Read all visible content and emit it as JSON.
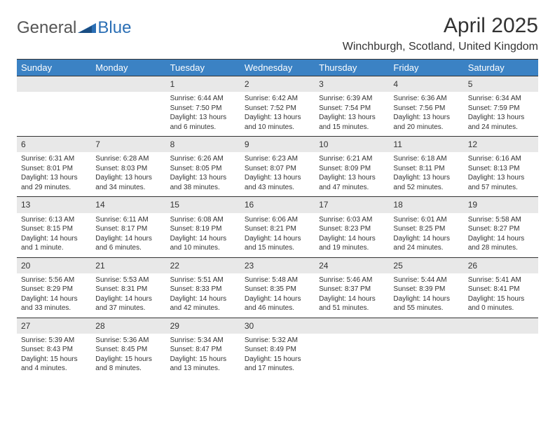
{
  "logo": {
    "text1": "General",
    "text2": "Blue"
  },
  "title": "April 2025",
  "subtitle": "Winchburgh, Scotland, United Kingdom",
  "colors": {
    "header_bg": "#3b82c4",
    "header_text": "#ffffff",
    "daynum_bg": "#e8e8e8",
    "border": "#333333",
    "logo_blue": "#2b6fb5"
  },
  "day_headers": [
    "Sunday",
    "Monday",
    "Tuesday",
    "Wednesday",
    "Thursday",
    "Friday",
    "Saturday"
  ],
  "weeks": [
    [
      {
        "blank": true
      },
      {
        "blank": true
      },
      {
        "num": "1",
        "sunrise": "Sunrise: 6:44 AM",
        "sunset": "Sunset: 7:50 PM",
        "daylight": "Daylight: 13 hours and 6 minutes."
      },
      {
        "num": "2",
        "sunrise": "Sunrise: 6:42 AM",
        "sunset": "Sunset: 7:52 PM",
        "daylight": "Daylight: 13 hours and 10 minutes."
      },
      {
        "num": "3",
        "sunrise": "Sunrise: 6:39 AM",
        "sunset": "Sunset: 7:54 PM",
        "daylight": "Daylight: 13 hours and 15 minutes."
      },
      {
        "num": "4",
        "sunrise": "Sunrise: 6:36 AM",
        "sunset": "Sunset: 7:56 PM",
        "daylight": "Daylight: 13 hours and 20 minutes."
      },
      {
        "num": "5",
        "sunrise": "Sunrise: 6:34 AM",
        "sunset": "Sunset: 7:59 PM",
        "daylight": "Daylight: 13 hours and 24 minutes."
      }
    ],
    [
      {
        "num": "6",
        "sunrise": "Sunrise: 6:31 AM",
        "sunset": "Sunset: 8:01 PM",
        "daylight": "Daylight: 13 hours and 29 minutes."
      },
      {
        "num": "7",
        "sunrise": "Sunrise: 6:28 AM",
        "sunset": "Sunset: 8:03 PM",
        "daylight": "Daylight: 13 hours and 34 minutes."
      },
      {
        "num": "8",
        "sunrise": "Sunrise: 6:26 AM",
        "sunset": "Sunset: 8:05 PM",
        "daylight": "Daylight: 13 hours and 38 minutes."
      },
      {
        "num": "9",
        "sunrise": "Sunrise: 6:23 AM",
        "sunset": "Sunset: 8:07 PM",
        "daylight": "Daylight: 13 hours and 43 minutes."
      },
      {
        "num": "10",
        "sunrise": "Sunrise: 6:21 AM",
        "sunset": "Sunset: 8:09 PM",
        "daylight": "Daylight: 13 hours and 47 minutes."
      },
      {
        "num": "11",
        "sunrise": "Sunrise: 6:18 AM",
        "sunset": "Sunset: 8:11 PM",
        "daylight": "Daylight: 13 hours and 52 minutes."
      },
      {
        "num": "12",
        "sunrise": "Sunrise: 6:16 AM",
        "sunset": "Sunset: 8:13 PM",
        "daylight": "Daylight: 13 hours and 57 minutes."
      }
    ],
    [
      {
        "num": "13",
        "sunrise": "Sunrise: 6:13 AM",
        "sunset": "Sunset: 8:15 PM",
        "daylight": "Daylight: 14 hours and 1 minute."
      },
      {
        "num": "14",
        "sunrise": "Sunrise: 6:11 AM",
        "sunset": "Sunset: 8:17 PM",
        "daylight": "Daylight: 14 hours and 6 minutes."
      },
      {
        "num": "15",
        "sunrise": "Sunrise: 6:08 AM",
        "sunset": "Sunset: 8:19 PM",
        "daylight": "Daylight: 14 hours and 10 minutes."
      },
      {
        "num": "16",
        "sunrise": "Sunrise: 6:06 AM",
        "sunset": "Sunset: 8:21 PM",
        "daylight": "Daylight: 14 hours and 15 minutes."
      },
      {
        "num": "17",
        "sunrise": "Sunrise: 6:03 AM",
        "sunset": "Sunset: 8:23 PM",
        "daylight": "Daylight: 14 hours and 19 minutes."
      },
      {
        "num": "18",
        "sunrise": "Sunrise: 6:01 AM",
        "sunset": "Sunset: 8:25 PM",
        "daylight": "Daylight: 14 hours and 24 minutes."
      },
      {
        "num": "19",
        "sunrise": "Sunrise: 5:58 AM",
        "sunset": "Sunset: 8:27 PM",
        "daylight": "Daylight: 14 hours and 28 minutes."
      }
    ],
    [
      {
        "num": "20",
        "sunrise": "Sunrise: 5:56 AM",
        "sunset": "Sunset: 8:29 PM",
        "daylight": "Daylight: 14 hours and 33 minutes."
      },
      {
        "num": "21",
        "sunrise": "Sunrise: 5:53 AM",
        "sunset": "Sunset: 8:31 PM",
        "daylight": "Daylight: 14 hours and 37 minutes."
      },
      {
        "num": "22",
        "sunrise": "Sunrise: 5:51 AM",
        "sunset": "Sunset: 8:33 PM",
        "daylight": "Daylight: 14 hours and 42 minutes."
      },
      {
        "num": "23",
        "sunrise": "Sunrise: 5:48 AM",
        "sunset": "Sunset: 8:35 PM",
        "daylight": "Daylight: 14 hours and 46 minutes."
      },
      {
        "num": "24",
        "sunrise": "Sunrise: 5:46 AM",
        "sunset": "Sunset: 8:37 PM",
        "daylight": "Daylight: 14 hours and 51 minutes."
      },
      {
        "num": "25",
        "sunrise": "Sunrise: 5:44 AM",
        "sunset": "Sunset: 8:39 PM",
        "daylight": "Daylight: 14 hours and 55 minutes."
      },
      {
        "num": "26",
        "sunrise": "Sunrise: 5:41 AM",
        "sunset": "Sunset: 8:41 PM",
        "daylight": "Daylight: 15 hours and 0 minutes."
      }
    ],
    [
      {
        "num": "27",
        "sunrise": "Sunrise: 5:39 AM",
        "sunset": "Sunset: 8:43 PM",
        "daylight": "Daylight: 15 hours and 4 minutes."
      },
      {
        "num": "28",
        "sunrise": "Sunrise: 5:36 AM",
        "sunset": "Sunset: 8:45 PM",
        "daylight": "Daylight: 15 hours and 8 minutes."
      },
      {
        "num": "29",
        "sunrise": "Sunrise: 5:34 AM",
        "sunset": "Sunset: 8:47 PM",
        "daylight": "Daylight: 15 hours and 13 minutes."
      },
      {
        "num": "30",
        "sunrise": "Sunrise: 5:32 AM",
        "sunset": "Sunset: 8:49 PM",
        "daylight": "Daylight: 15 hours and 17 minutes."
      },
      {
        "blank": true
      },
      {
        "blank": true
      },
      {
        "blank": true
      }
    ]
  ]
}
